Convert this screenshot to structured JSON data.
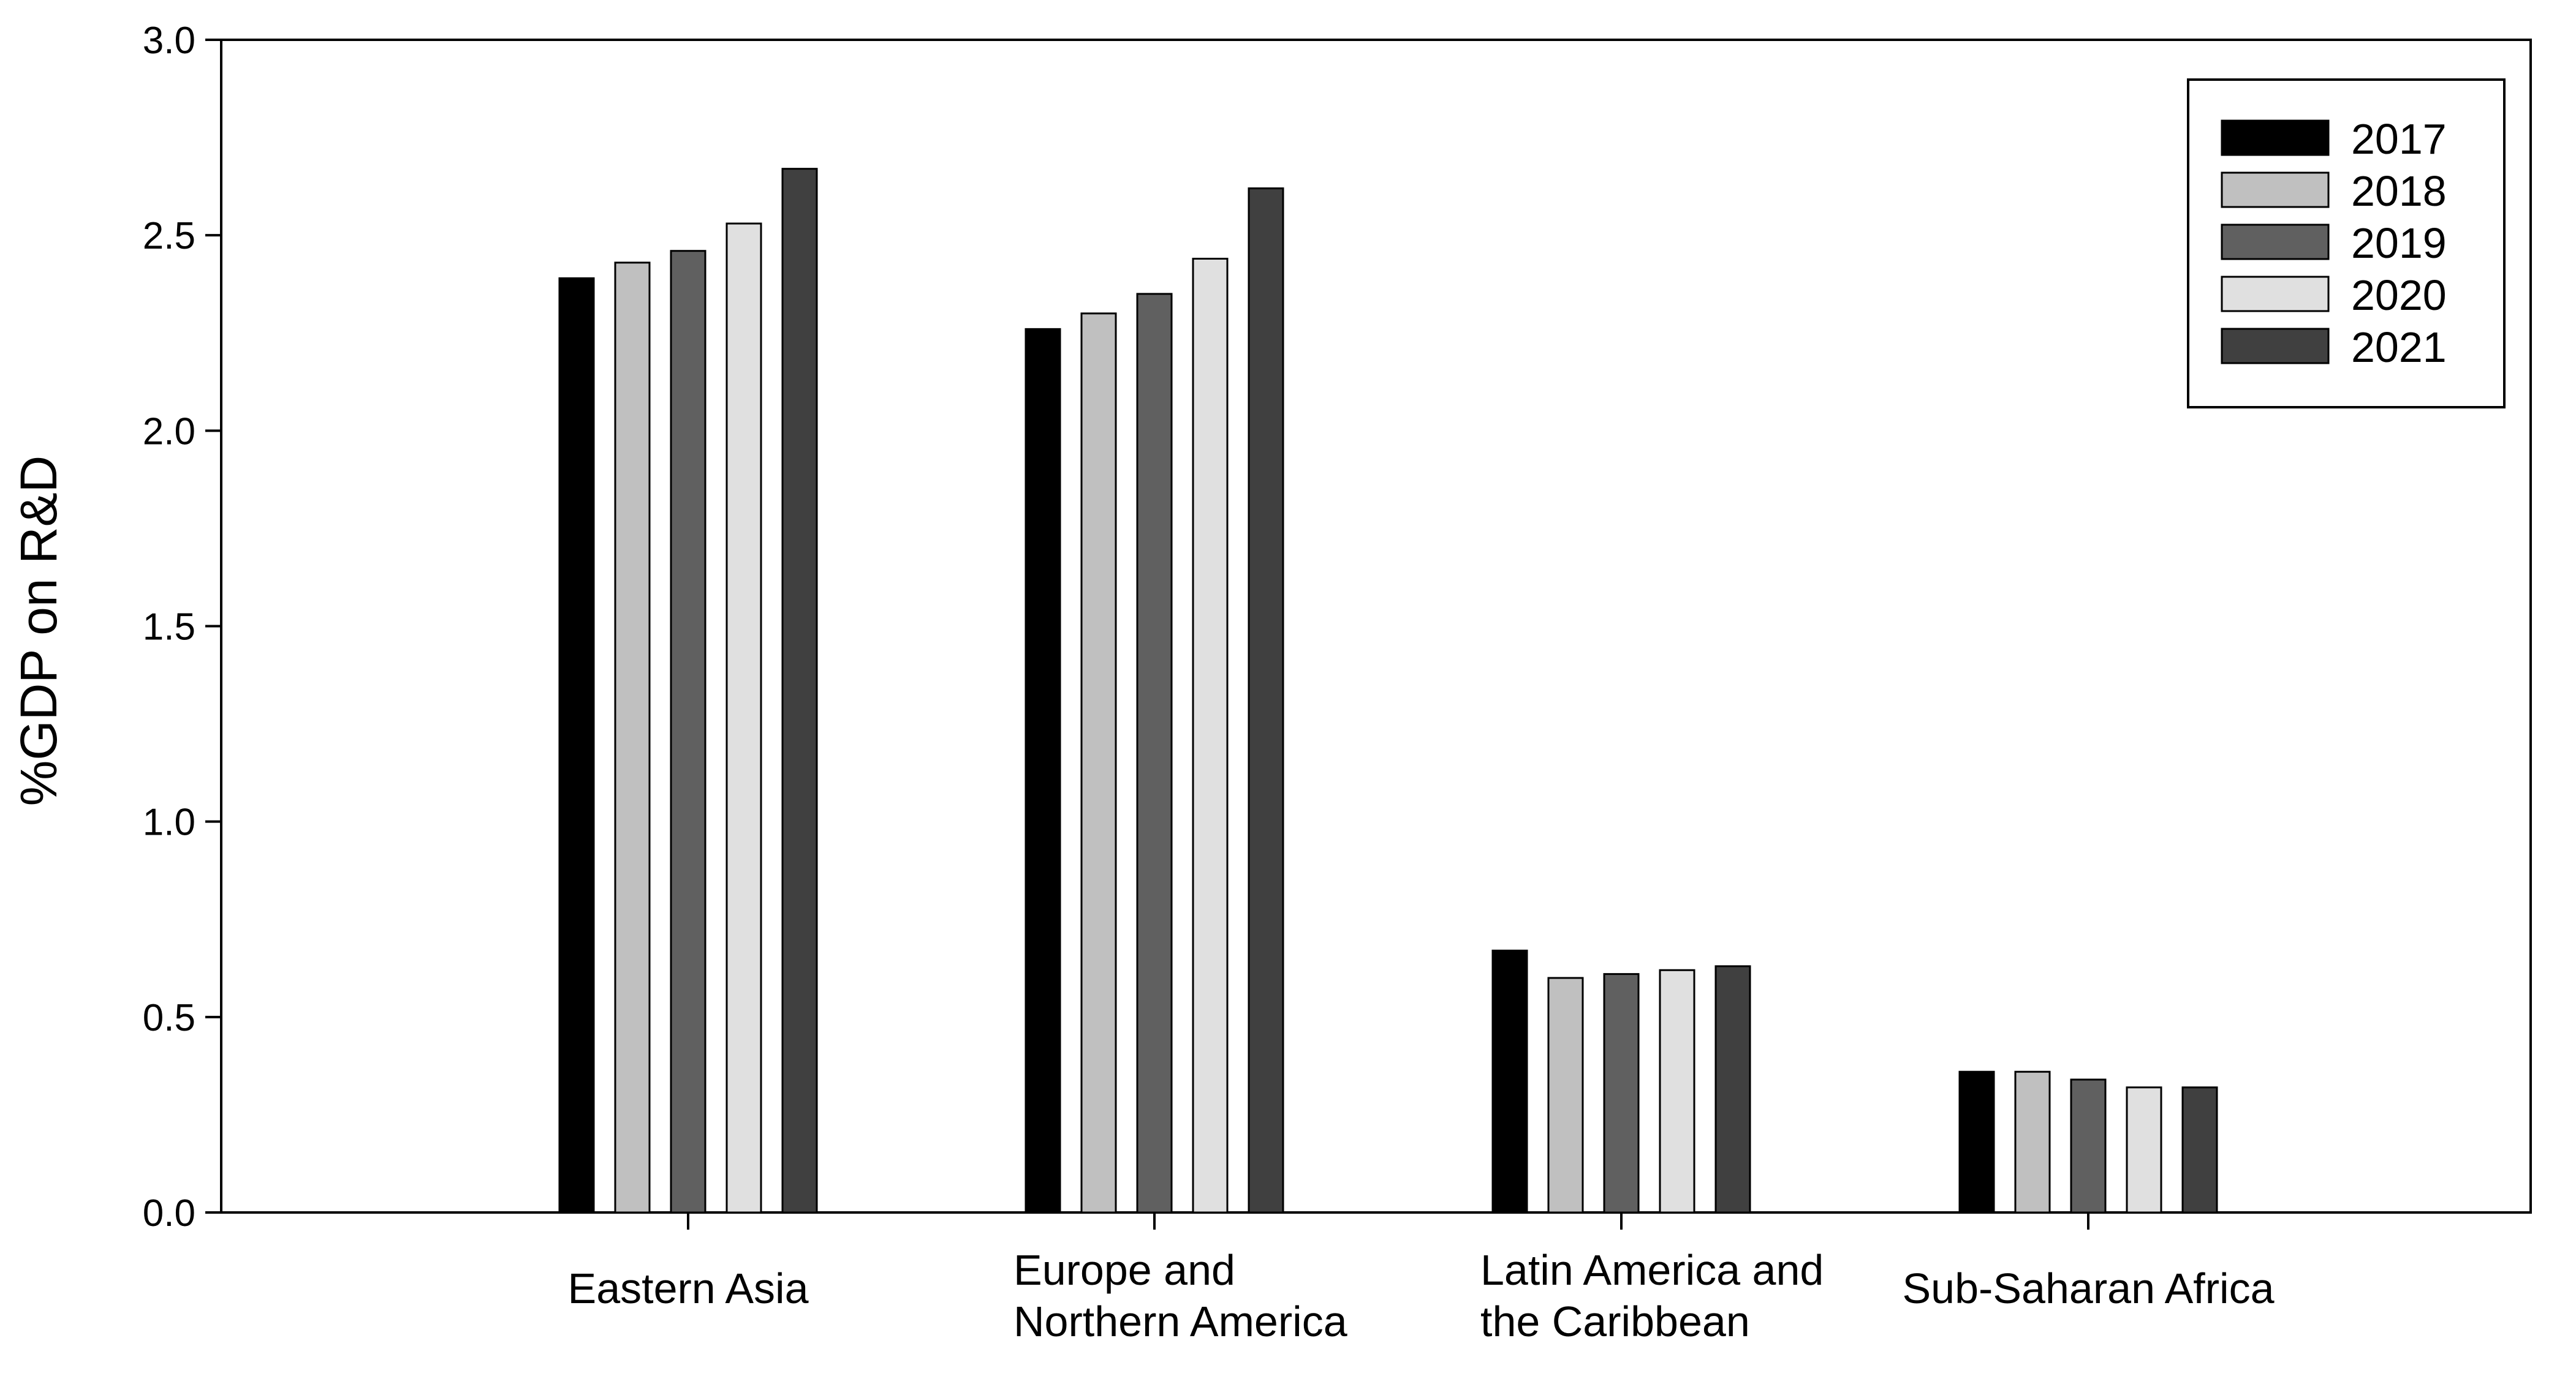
{
  "chart_data": {
    "type": "bar",
    "ylabel": "%GDP on R&D",
    "ylim": [
      0,
      3.0
    ],
    "yticks": [
      "0.0",
      "0.5",
      "1.0",
      "1.5",
      "2.0",
      "2.5",
      "3.0"
    ],
    "categories": [
      [
        "Eastern Asia"
      ],
      [
        "Europe and",
        "Northern America"
      ],
      [
        "Latin America and",
        "the Caribbean"
      ],
      [
        "Sub-Saharan Africa"
      ]
    ],
    "series": [
      {
        "name": "2017",
        "color": "#000000",
        "values": [
          2.39,
          2.26,
          0.67,
          0.36
        ]
      },
      {
        "name": "2018",
        "color": "#c0c0c0",
        "values": [
          2.43,
          2.3,
          0.6,
          0.36
        ]
      },
      {
        "name": "2019",
        "color": "#606060",
        "values": [
          2.46,
          2.35,
          0.61,
          0.34
        ]
      },
      {
        "name": "2020",
        "color": "#e0e0e0",
        "values": [
          2.53,
          2.44,
          0.62,
          0.32
        ]
      },
      {
        "name": "2021",
        "color": "#404040",
        "values": [
          2.67,
          2.62,
          0.63,
          0.32
        ]
      }
    ],
    "grid": false,
    "legend_position": "top-right"
  }
}
